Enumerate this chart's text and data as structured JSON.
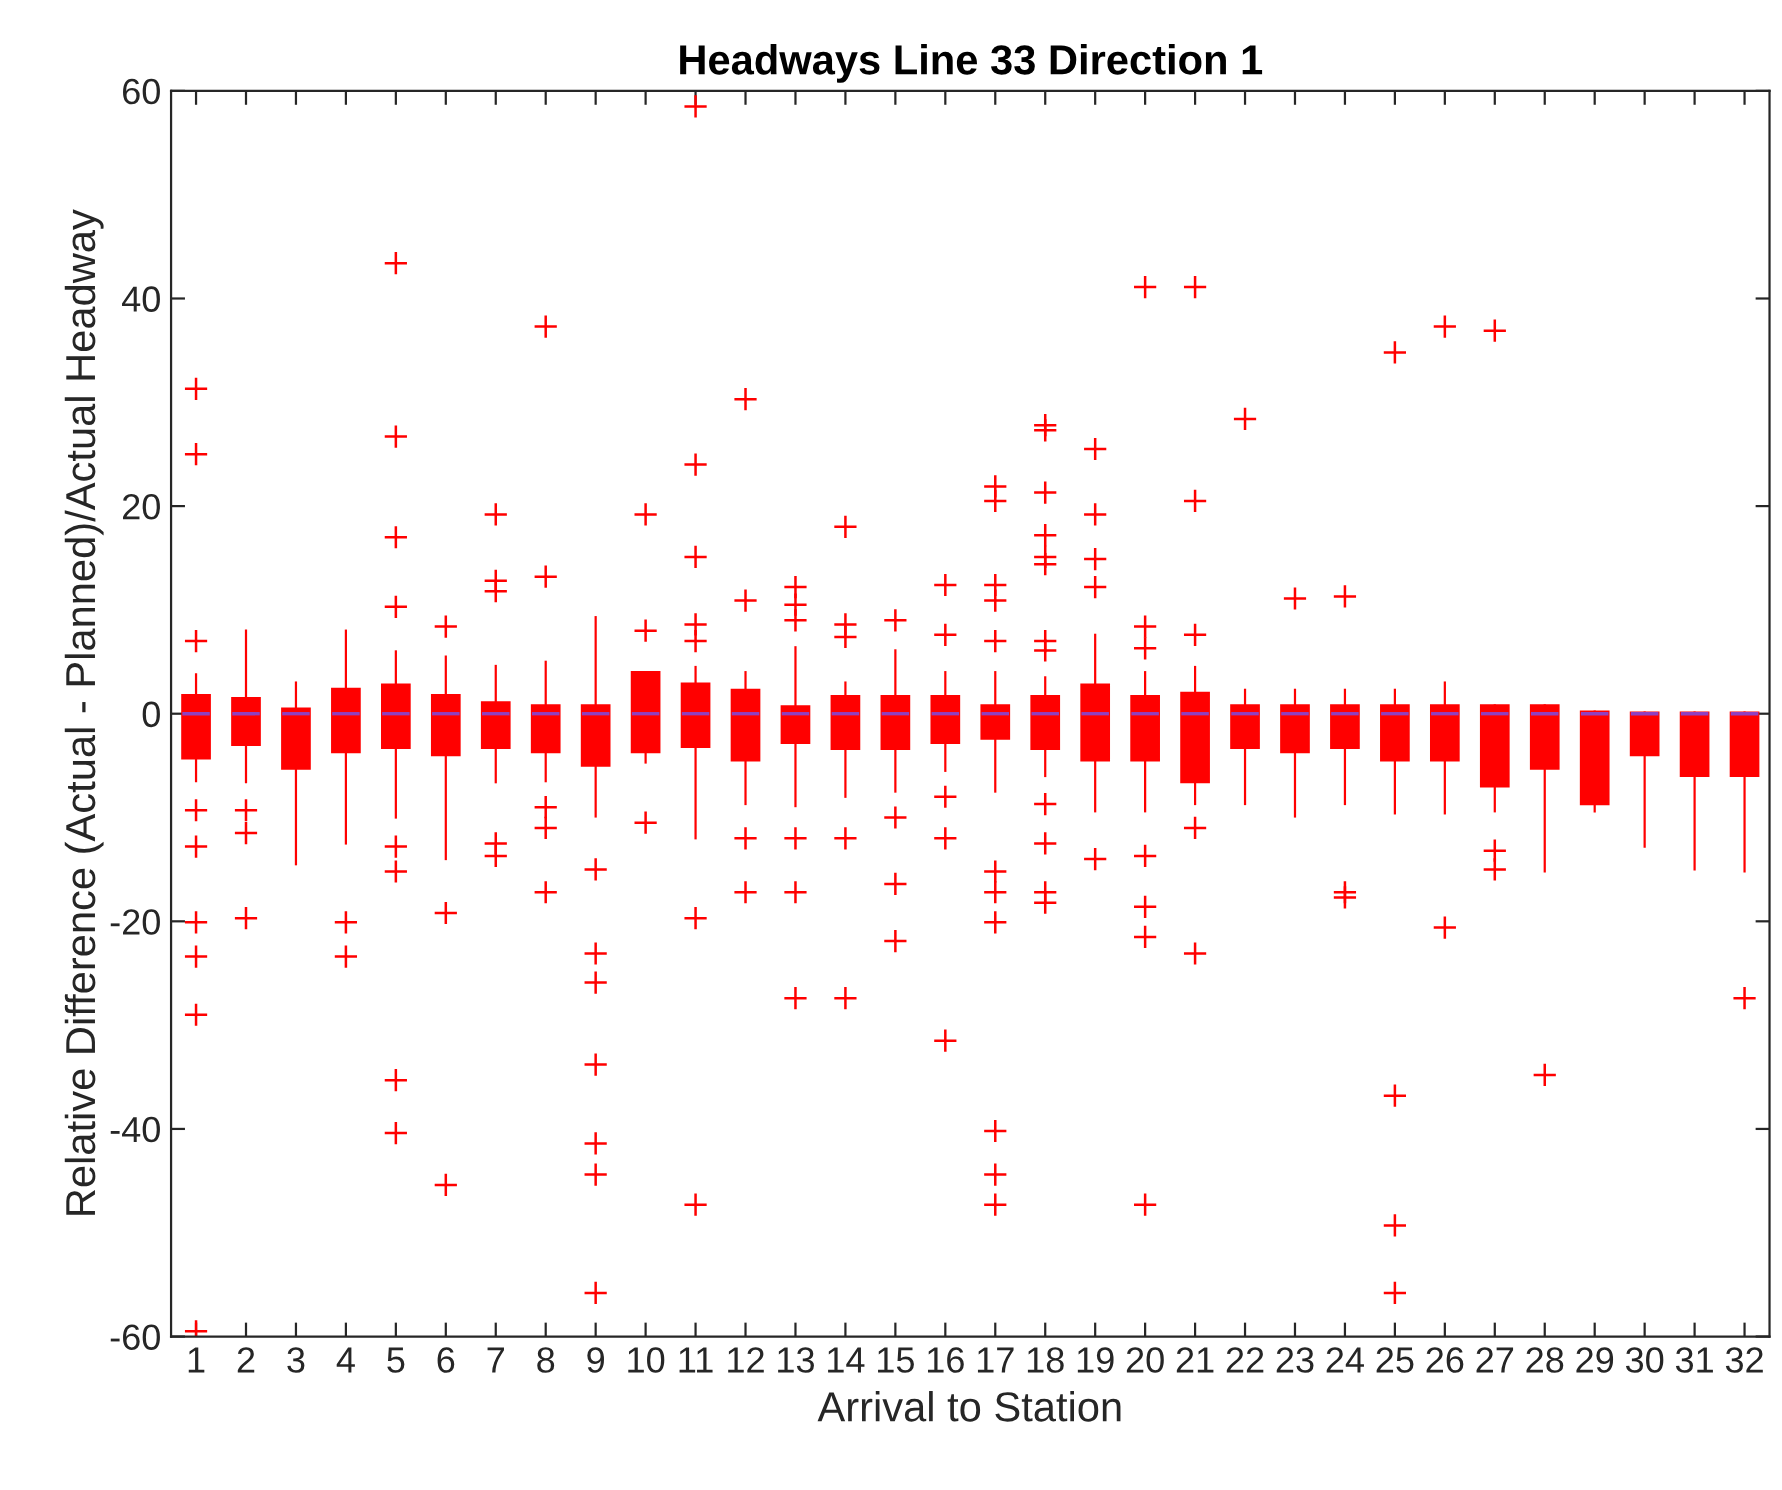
{
  "chart_data": {
    "type": "box",
    "title": "Headways Line 33 Direction 1",
    "xlabel": "Arrival to Station",
    "ylabel": "Relative Difference (Actual - Planned)/Actual Headway",
    "categories": [
      "1",
      "2",
      "3",
      "4",
      "5",
      "6",
      "7",
      "8",
      "9",
      "10",
      "11",
      "12",
      "13",
      "14",
      "15",
      "16",
      "17",
      "18",
      "19",
      "20",
      "21",
      "22",
      "23",
      "24",
      "25",
      "26",
      "27",
      "28",
      "29",
      "30",
      "31",
      "32"
    ],
    "ylim": [
      -60,
      60
    ],
    "yticks": [
      -60,
      -40,
      -20,
      0,
      20,
      40,
      60
    ],
    "grid": false,
    "marker": "cross",
    "series": [
      {
        "color": "#ff0000",
        "boxes": [
          {
            "low": -6.5,
            "q1": -4.3,
            "median": 0,
            "q3": 1.8,
            "high": 3.8,
            "outliers": [
              31.3,
              25.0,
              7.0,
              -9.3,
              -12.8,
              -20.1,
              -23.4,
              -29.0,
              -59.5
            ]
          },
          {
            "low": -6.6,
            "q1": -3.0,
            "median": 0,
            "q3": 1.5,
            "high": 8.0,
            "outliers": [
              -9.3,
              -11.5,
              -19.7
            ]
          },
          {
            "low": -14.5,
            "q1": -5.3,
            "median": 0,
            "q3": 0.5,
            "high": 3.0
          },
          {
            "low": -12.5,
            "q1": -3.7,
            "median": 0,
            "q3": 2.4,
            "high": 8.0,
            "outliers": [
              -20.1,
              -23.4
            ]
          },
          {
            "low": -10.0,
            "q1": -3.3,
            "median": 0,
            "q3": 2.8,
            "high": 6.0,
            "outliers": [
              43.4,
              26.7,
              17.0,
              10.3,
              -12.8,
              -15.2,
              -35.3,
              -40.4
            ]
          },
          {
            "low": -14.0,
            "q1": -4.0,
            "median": 0,
            "q3": 1.8,
            "high": 5.5,
            "outliers": [
              8.4,
              -19.2,
              -45.4
            ]
          },
          {
            "low": -6.6,
            "q1": -3.3,
            "median": 0,
            "q3": 1.1,
            "high": 4.6,
            "outliers": [
              19.2,
              12.8,
              11.8,
              -12.5,
              -13.7
            ]
          },
          {
            "low": -6.5,
            "q1": -3.7,
            "median": 0,
            "q3": 0.8,
            "high": 5.0,
            "outliers": [
              37.3,
              13.2,
              -9.0,
              -11.0,
              -17.2
            ]
          },
          {
            "low": -9.9,
            "q1": -5.0,
            "median": 0,
            "q3": 0.8,
            "high": 9.3,
            "outliers": [
              -15.0,
              -23.1,
              -25.9,
              -33.8,
              -41.4,
              -44.4,
              -55.8
            ]
          },
          {
            "low": -4.7,
            "q1": -3.7,
            "median": 0,
            "q3": 4.0,
            "high": 4.0,
            "outliers": [
              19.2,
              8.0,
              -10.5
            ]
          },
          {
            "low": -12.0,
            "q1": -3.2,
            "median": 0,
            "q3": 2.9,
            "high": 4.5,
            "outliers": [
              58.5,
              24.0,
              15.1,
              8.6,
              7.0,
              -19.7,
              -47.3
            ]
          },
          {
            "low": -8.7,
            "q1": -4.5,
            "median": 0,
            "q3": 2.3,
            "high": 4.0,
            "outliers": [
              30.3,
              10.9,
              -12.0,
              -17.2
            ]
          },
          {
            "low": -8.9,
            "q1": -2.8,
            "median": 0,
            "q3": 0.7,
            "high": 6.4,
            "outliers": [
              12.2,
              10.5,
              9.0,
              -12.0,
              -17.2,
              -27.4
            ]
          },
          {
            "low": -8.0,
            "q1": -3.4,
            "median": 0,
            "q3": 1.7,
            "high": 3.0,
            "outliers": [
              18.0,
              8.6,
              7.4,
              -12.0,
              -27.4
            ]
          },
          {
            "low": -7.5,
            "q1": -3.4,
            "median": 0,
            "q3": 1.7,
            "high": 6.1,
            "outliers": [
              9.0,
              -10.0,
              -16.4,
              -21.9
            ]
          },
          {
            "low": -5.5,
            "q1": -2.8,
            "median": 0,
            "q3": 1.7,
            "high": 4.0,
            "outliers": [
              12.4,
              7.6,
              -8.0,
              -12.0,
              -31.5
            ]
          },
          {
            "low": -7.5,
            "q1": -2.4,
            "median": 0,
            "q3": 0.8,
            "high": 4.0,
            "outliers": [
              21.9,
              20.5,
              12.4,
              10.9,
              7.0,
              -15.2,
              -17.2,
              -20.1,
              -40.2,
              -44.4,
              -47.3
            ]
          },
          {
            "low": -6.0,
            "q1": -3.4,
            "median": 0,
            "q3": 1.7,
            "high": 3.5,
            "outliers": [
              27.8,
              27.3,
              21.3,
              17.2,
              15.1,
              14.4,
              7.0,
              6.1,
              -8.7,
              -12.5,
              -17.2,
              -18.2
            ]
          },
          {
            "low": -9.4,
            "q1": -4.5,
            "median": 0,
            "q3": 2.8,
            "high": 7.6,
            "outliers": [
              25.5,
              19.2,
              14.9,
              12.2,
              -14.0
            ]
          },
          {
            "low": -9.4,
            "q1": -4.5,
            "median": 0,
            "q3": 1.7,
            "high": 4.0,
            "outliers": [
              41.1,
              8.4,
              6.3,
              -13.7,
              -18.6,
              -21.5,
              -47.3
            ]
          },
          {
            "low": -8.7,
            "q1": -6.6,
            "median": 0,
            "q3": 2.0,
            "high": 4.5,
            "outliers": [
              41.1,
              20.5,
              7.6,
              -11.0,
              -23.1
            ]
          },
          {
            "low": -8.7,
            "q1": -3.3,
            "median": 0,
            "q3": 0.8,
            "high": 2.3,
            "outliers": [
              28.4
            ]
          },
          {
            "low": -9.9,
            "q1": -3.7,
            "median": 0,
            "q3": 0.8,
            "high": 2.3,
            "outliers": [
              11.1
            ]
          },
          {
            "low": -8.7,
            "q1": -3.3,
            "median": 0,
            "q3": 0.8,
            "high": 2.3,
            "outliers": [
              11.3,
              -17.2,
              -17.7
            ]
          },
          {
            "low": -9.6,
            "q1": -4.5,
            "median": 0,
            "q3": 0.8,
            "high": 2.3,
            "outliers": [
              34.8,
              -36.8,
              -49.3,
              -55.8
            ]
          },
          {
            "low": -9.6,
            "q1": -4.5,
            "median": 0,
            "q3": 0.8,
            "high": 3.0,
            "outliers": [
              37.3,
              -20.6
            ]
          },
          {
            "low": -9.4,
            "q1": -7.0,
            "median": 0,
            "q3": 0.8,
            "high": 0.8,
            "outliers": [
              36.9,
              -13.2,
              -15.0
            ]
          },
          {
            "low": -15.2,
            "q1": -5.3,
            "median": 0,
            "q3": 0.8,
            "high": 0.8,
            "outliers": [
              -34.8
            ]
          },
          {
            "low": -9.4,
            "q1": -8.7,
            "median": 0,
            "q3": 0.2,
            "high": 0.2
          },
          {
            "low": -12.8,
            "q1": -4.0,
            "median": 0,
            "q3": 0.1,
            "high": 0.1
          },
          {
            "low": -15.0,
            "q1": -6.0,
            "median": 0,
            "q3": 0.1,
            "high": 0.1
          },
          {
            "low": -15.2,
            "q1": -6.0,
            "median": 0,
            "q3": 0.1,
            "high": 0.1,
            "outliers": [
              -27.4
            ]
          }
        ]
      }
    ]
  }
}
